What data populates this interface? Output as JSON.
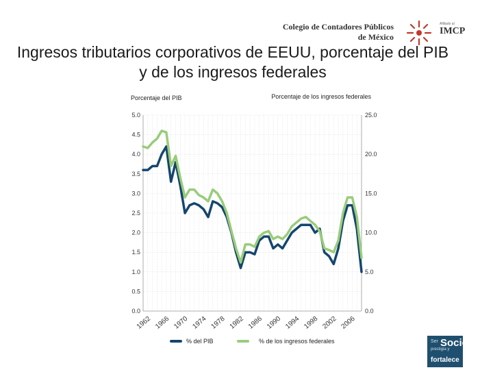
{
  "header": {
    "logo_line1": "Colegio de Contadores Públicos",
    "logo_line2": "de México",
    "logo_affiliate": "Afiliado al",
    "logo_imcp": "IMCP"
  },
  "title": "Ingresos tributarios corporativos de EEUU, porcentaje del PIB y de los ingresos federales",
  "badge": {
    "line1": "Ser",
    "line2": "Socio",
    "line3": "prestigia y",
    "line4": "fortalece"
  },
  "colors": {
    "series_pib": "#14466e",
    "series_federal": "#99cc7a",
    "grid": "#d3d3d3",
    "badge": "#1f4f6e"
  },
  "chart_data": {
    "type": "line",
    "title": "",
    "ylabel_left": "Porcentaje del PIB",
    "ylabel_right": "Porcentaje de los ingresos federales",
    "ylim_left": [
      0,
      5
    ],
    "ylim_right": [
      0,
      25
    ],
    "yticks_left": [
      "0.0",
      "0.5",
      "1.0",
      "1.5",
      "2.0",
      "2.5",
      "3.0",
      "3.5",
      "4.0",
      "4.5",
      "5.0"
    ],
    "yticks_right": [
      "0.0",
      "5.0",
      "10.0",
      "15.0",
      "20.0",
      "25.0"
    ],
    "xlim": [
      1962,
      2009
    ],
    "xticks": [
      "1962",
      "1966",
      "1970",
      "1974",
      "1978",
      "1982",
      "1986",
      "1990",
      "1994",
      "1998",
      "2002",
      "2006"
    ],
    "grid": true,
    "legend_position": "bottom",
    "x": [
      1962,
      1963,
      1964,
      1965,
      1966,
      1967,
      1968,
      1969,
      1970,
      1971,
      1972,
      1973,
      1974,
      1975,
      1976,
      1977,
      1978,
      1979,
      1980,
      1981,
      1982,
      1983,
      1984,
      1985,
      1986,
      1987,
      1988,
      1989,
      1990,
      1991,
      1992,
      1993,
      1994,
      1995,
      1996,
      1997,
      1998,
      1999,
      2000,
      2001,
      2002,
      2003,
      2004,
      2005,
      2006,
      2007,
      2008,
      2009
    ],
    "series": [
      {
        "name": "% del PIB",
        "axis": "left",
        "values": [
          3.6,
          3.6,
          3.7,
          3.7,
          4.0,
          4.2,
          3.3,
          3.8,
          3.2,
          2.5,
          2.7,
          2.75,
          2.7,
          2.6,
          2.4,
          2.8,
          2.75,
          2.65,
          2.4,
          2.0,
          1.5,
          1.1,
          1.5,
          1.5,
          1.45,
          1.8,
          1.9,
          1.9,
          1.6,
          1.7,
          1.6,
          1.8,
          2.0,
          2.1,
          2.2,
          2.2,
          2.2,
          2.0,
          2.1,
          1.5,
          1.4,
          1.2,
          1.6,
          2.3,
          2.7,
          2.7,
          2.1,
          1.0
        ]
      },
      {
        "name": "% de los ingresos federales",
        "axis": "right",
        "values": [
          21.0,
          20.8,
          21.5,
          22.0,
          23.0,
          22.8,
          18.5,
          19.8,
          17.0,
          14.5,
          15.5,
          15.5,
          14.8,
          14.5,
          14.0,
          15.5,
          15.0,
          14.0,
          12.5,
          10.2,
          8.0,
          6.2,
          8.5,
          8.5,
          8.2,
          9.5,
          10.0,
          10.2,
          9.2,
          9.5,
          9.2,
          9.8,
          10.8,
          11.3,
          11.8,
          12.0,
          11.5,
          11.0,
          10.2,
          8.0,
          7.8,
          7.5,
          9.0,
          12.5,
          14.5,
          14.5,
          12.0,
          6.8
        ]
      }
    ]
  }
}
